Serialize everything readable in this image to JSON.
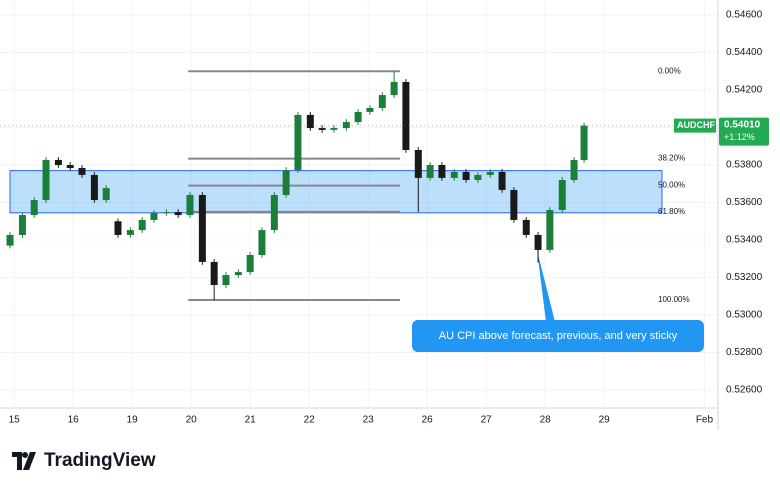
{
  "chart_data": {
    "type": "candlestick",
    "symbol": "AUDCHF",
    "last_price": {
      "value": 0.5401,
      "label": "0.54010"
    },
    "change": "+1.12%",
    "annotation": "AU CPI above forecast, previous, and very sticky",
    "x": [
      -0.07,
      0.14,
      0.34,
      0.54,
      0.75,
      0.95,
      1.15,
      1.36,
      1.56,
      1.76,
      1.97,
      2.17,
      2.37,
      2.58,
      2.78,
      2.98,
      3.19,
      3.39,
      3.59,
      3.8,
      4.0,
      4.2,
      4.41,
      4.61,
      4.81,
      5.02,
      5.22,
      5.42,
      5.63,
      5.83,
      6.03,
      6.24,
      6.44,
      6.64,
      6.85,
      7.05,
      7.25,
      7.46,
      7.66,
      7.86,
      8.07,
      8.27,
      8.47,
      8.68,
      8.88,
      9.08,
      9.29,
      9.49,
      9.66
    ],
    "open": [
      0.5337,
      0.53427,
      0.53533,
      0.53613,
      0.53827,
      0.538,
      0.53784,
      0.53747,
      0.53613,
      0.535,
      0.53427,
      0.53453,
      0.53507,
      0.53544,
      0.53549,
      0.53533,
      0.5364,
      0.53283,
      0.5316,
      0.53213,
      0.53229,
      0.5332,
      0.53453,
      0.5364,
      0.53773,
      0.54067,
      0.53997,
      0.53987,
      0.53997,
      0.54029,
      0.54083,
      0.54104,
      0.54173,
      0.54243,
      0.5388,
      0.53731,
      0.538,
      0.53731,
      0.53763,
      0.5372,
      0.53747,
      0.53763,
      0.53667,
      0.53507,
      0.53427,
      0.53347,
      0.5356,
      0.5372,
      0.53827
    ],
    "high": [
      0.53442,
      0.53548,
      0.53628,
      0.53842,
      0.53842,
      0.53815,
      0.53799,
      0.53762,
      0.53692,
      0.53515,
      0.53468,
      0.53522,
      0.53559,
      0.53564,
      0.53564,
      0.53655,
      0.53655,
      0.53298,
      0.53228,
      0.53244,
      0.53335,
      0.53468,
      0.53655,
      0.53788,
      0.54082,
      0.54082,
      0.54012,
      0.54012,
      0.54044,
      0.54098,
      0.54119,
      0.54188,
      0.543,
      0.54258,
      0.53895,
      0.53815,
      0.53815,
      0.53778,
      0.53778,
      0.53762,
      0.53778,
      0.53778,
      0.53682,
      0.53522,
      0.53442,
      0.53575,
      0.53735,
      0.53842,
      0.54025
    ],
    "low": [
      0.53355,
      0.53412,
      0.53518,
      0.53598,
      0.53785,
      0.53769,
      0.53732,
      0.53598,
      0.53598,
      0.53412,
      0.53412,
      0.53438,
      0.53492,
      0.53529,
      0.53518,
      0.53518,
      0.53268,
      0.5308,
      0.53145,
      0.53198,
      0.53214,
      0.53305,
      0.53438,
      0.53625,
      0.53758,
      0.53982,
      0.53972,
      0.53972,
      0.53982,
      0.54014,
      0.54068,
      0.54089,
      0.54158,
      0.53865,
      0.5355,
      0.53716,
      0.53716,
      0.53716,
      0.53705,
      0.53705,
      0.53732,
      0.53652,
      0.53492,
      0.53412,
      0.5328,
      0.53332,
      0.53545,
      0.53705,
      0.53812
    ],
    "close": [
      0.53427,
      0.53533,
      0.53613,
      0.53827,
      0.538,
      0.53784,
      0.53747,
      0.53613,
      0.53677,
      0.53427,
      0.53453,
      0.53507,
      0.53544,
      0.53549,
      0.53533,
      0.5364,
      0.53283,
      0.5316,
      0.53213,
      0.53229,
      0.5332,
      0.53453,
      0.5364,
      0.53773,
      0.54067,
      0.53997,
      0.53987,
      0.53997,
      0.54029,
      0.54083,
      0.54104,
      0.54173,
      0.54243,
      0.5388,
      0.53731,
      0.538,
      0.53731,
      0.53763,
      0.5372,
      0.53747,
      0.53763,
      0.53667,
      0.53507,
      0.53427,
      0.53347,
      0.5356,
      0.5372,
      0.53827,
      0.5401
    ],
    "up_color": "#1b7f3a",
    "down_color": "#1a1a1a",
    "xlim": [
      -0.24,
      11.93
    ],
    "xticks": [
      {
        "value": 0,
        "label": "15"
      },
      {
        "value": 1,
        "label": "16"
      },
      {
        "value": 2,
        "label": "19"
      },
      {
        "value": 3,
        "label": "20"
      },
      {
        "value": 4,
        "label": "21"
      },
      {
        "value": 5,
        "label": "22"
      },
      {
        "value": 6,
        "label": "23"
      },
      {
        "value": 7,
        "label": "26"
      },
      {
        "value": 8,
        "label": "27"
      },
      {
        "value": 9,
        "label": "28"
      },
      {
        "value": 10,
        "label": "29"
      },
      {
        "value": 11.7,
        "label": "Feb"
      }
    ],
    "ylim": [
      0.52504,
      0.5468
    ],
    "yticks": [
      {
        "value": 0.526,
        "label": "0.52600"
      },
      {
        "value": 0.528,
        "label": "0.52800"
      },
      {
        "value": 0.53,
        "label": "0.53000"
      },
      {
        "value": 0.532,
        "label": "0.53200"
      },
      {
        "value": 0.534,
        "label": "0.53400"
      },
      {
        "value": 0.536,
        "label": "0.53600"
      },
      {
        "value": 0.538,
        "label": "0.53800"
      },
      {
        "value": 0.54,
        "label": "0.54000"
      },
      {
        "value": 0.542,
        "label": "0.54200"
      },
      {
        "value": 0.544,
        "label": "0.54400"
      },
      {
        "value": 0.546,
        "label": "0.54600"
      }
    ],
    "grid": true,
    "fib_xlim": [
      2.95,
      6.54
    ],
    "fib_levels": [
      {
        "value": 0.543,
        "label": "0.00%"
      },
      {
        "value": 0.53834,
        "label": "38.20%"
      },
      {
        "value": 0.5369,
        "label": "50.00%"
      },
      {
        "value": 0.5355,
        "label": "61.80%"
      },
      {
        "value": 0.5308,
        "label": "100.00%"
      }
    ],
    "zone": [
      0.53545,
      0.5377
    ]
  },
  "brand": "TradingView"
}
